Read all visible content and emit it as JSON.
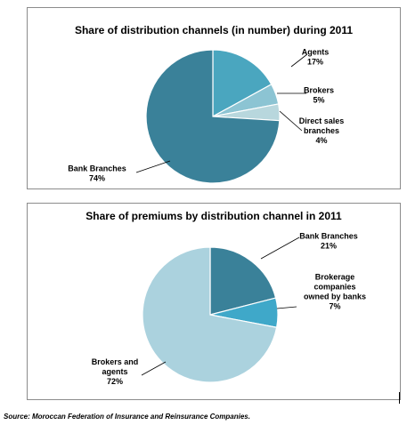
{
  "chart_data": [
    {
      "type": "pie",
      "title": "Share of distribution channels (in number) during  2011",
      "slices": [
        {
          "label_lines": [
            "Agents",
            "17%"
          ],
          "value": 17,
          "color": "#4aa6bf"
        },
        {
          "label_lines": [
            "Brokers",
            "5%"
          ],
          "value": 5,
          "color": "#8cc4d3"
        },
        {
          "label_lines": [
            "Direct sales",
            "branches",
            "4%"
          ],
          "value": 4,
          "color": "#b8d7dd"
        },
        {
          "label_lines": [
            "Bank Branches",
            "74%"
          ],
          "value": 74,
          "color": "#3a8199"
        }
      ]
    },
    {
      "type": "pie",
      "title": "Share of premiums by distribution channel in 2011",
      "slices": [
        {
          "label_lines": [
            "Bank Branches",
            "21%"
          ],
          "value": 21,
          "color": "#3a8199"
        },
        {
          "label_lines": [
            "Brokerage",
            "companies",
            "owned by banks",
            "7%"
          ],
          "value": 7,
          "color": "#3fa8c9"
        },
        {
          "label_lines": [
            "Brokers and",
            "agents",
            "72%"
          ],
          "value": 72,
          "color": "#abd2de"
        }
      ]
    }
  ],
  "source": "Source: Moroccan Federation of Insurance and Reinsurance Companies."
}
